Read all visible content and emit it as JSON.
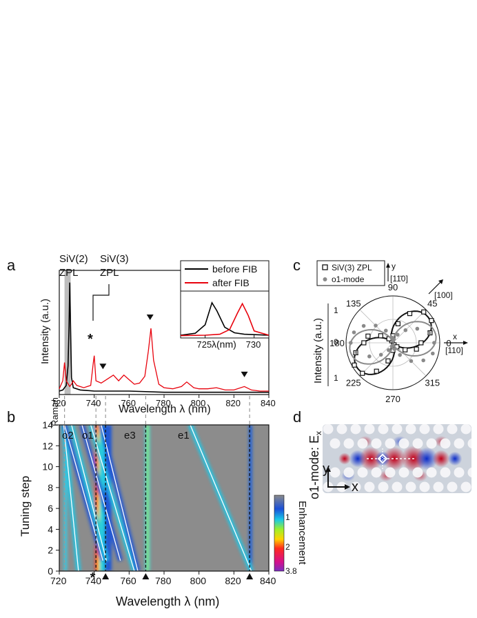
{
  "figure": {
    "panel_labels": [
      "a",
      "b",
      "c",
      "d"
    ]
  },
  "chart_data": [
    {
      "panel": "a",
      "type": "line",
      "xlabel": "Wavelength λ (nm)",
      "ylabel": "Intensity (a.u.)",
      "xlim": [
        720,
        840
      ],
      "xticks": [
        720,
        740,
        760,
        780,
        800,
        820,
        840
      ],
      "legend": [
        "before FIB",
        "after FIB"
      ],
      "legend_position": "top-right",
      "colors": {
        "before FIB": "#000000",
        "after FIB": "#e8000b"
      },
      "annotations": [
        "SiV(2)",
        "ZPL",
        "SiV(3)",
        "ZPL",
        "*",
        "Raman"
      ],
      "highlight_band": [
        723,
        726.5
      ],
      "markers_triangle": [
        745,
        772,
        826
      ],
      "series": [
        {
          "name": "before FIB",
          "x": [
            720,
            722,
            724,
            725,
            725.6,
            726,
            726.5,
            727,
            728,
            732,
            740,
            760,
            780,
            800,
            820,
            840
          ],
          "y": [
            0.03,
            0.04,
            0.08,
            0.25,
            0.6,
            0.98,
            0.55,
            0.15,
            0.06,
            0.04,
            0.03,
            0.03,
            0.02,
            0.02,
            0.02,
            0.02
          ]
        },
        {
          "name": "after FIB",
          "x": [
            720,
            722,
            723,
            724,
            726,
            727,
            728,
            730,
            734,
            738,
            739.5,
            740,
            741,
            744,
            748,
            751,
            754,
            757,
            760,
            763,
            766,
            769,
            771,
            772.5,
            774,
            777,
            780,
            785,
            790,
            793,
            797,
            800,
            805,
            810,
            815,
            820,
            826,
            830,
            835,
            840
          ],
          "y": [
            0.05,
            0.12,
            0.28,
            0.12,
            0.07,
            0.09,
            0.12,
            0.08,
            0.06,
            0.08,
            0.28,
            0.34,
            0.12,
            0.1,
            0.14,
            0.17,
            0.12,
            0.17,
            0.13,
            0.09,
            0.1,
            0.16,
            0.38,
            0.58,
            0.3,
            0.09,
            0.06,
            0.05,
            0.07,
            0.11,
            0.06,
            0.05,
            0.05,
            0.06,
            0.04,
            0.04,
            0.07,
            0.04,
            0.03,
            0.03
          ]
        }
      ],
      "inset": {
        "xlabel": "λ(nm)",
        "xlim": [
          722.5,
          731.5
        ],
        "xticks": [
          725,
          730
        ],
        "series": [
          {
            "name": "before FIB",
            "x": [
              722.5,
              724,
              725,
              725.7,
              726.2,
              727,
              728,
              729,
              731.5
            ],
            "y": [
              0.03,
              0.07,
              0.25,
              0.72,
              0.55,
              0.2,
              0.08,
              0.05,
              0.03
            ]
          },
          {
            "name": "after FIB",
            "x": [
              722.5,
              725,
              726.5,
              727.5,
              728.3,
              728.8,
              729.4,
              730,
              731.5
            ],
            "y": [
              0.02,
              0.03,
              0.05,
              0.15,
              0.5,
              0.7,
              0.45,
              0.12,
              0.03
            ]
          }
        ]
      }
    },
    {
      "panel": "b",
      "type": "heatmap",
      "xlabel": "Wavelength λ (nm)",
      "ylabel": "Tuning step",
      "xlim": [
        720,
        840
      ],
      "ylim": [
        0,
        14
      ],
      "xticks": [
        720,
        740,
        760,
        780,
        800,
        820,
        840
      ],
      "yticks": [
        0,
        2,
        4,
        6,
        8,
        10,
        12,
        14
      ],
      "colorbar_label": "Enhancement",
      "colorbar_ticks": [
        "1",
        "2",
        "3.8"
      ],
      "mode_labels": [
        "o2",
        "o1",
        "e3",
        "e1"
      ],
      "bottom_markers": [
        "*",
        "▲",
        "▲",
        "▲"
      ],
      "bottom_marker_x": [
        740,
        746.5,
        769.5,
        829
      ],
      "dashed_lines_x": [
        723,
        741,
        746.5,
        769.5,
        829
      ],
      "mode_tracks": [
        {
          "x": [
            722.5,
            731
          ],
          "y": [
            14,
            0
          ]
        },
        {
          "x": [
            723,
            745
          ],
          "y": [
            14,
            1
          ]
        },
        {
          "x": [
            727,
            747
          ],
          "y": [
            14,
            1
          ]
        },
        {
          "x": [
            733,
            755
          ],
          "y": [
            14,
            1
          ]
        },
        {
          "x": [
            738,
            763
          ],
          "y": [
            14,
            0
          ]
        },
        {
          "x": [
            744,
            765
          ],
          "y": [
            14,
            0
          ]
        },
        {
          "x": [
            795,
            830
          ],
          "y": [
            14,
            0
          ]
        }
      ]
    },
    {
      "panel": "c",
      "type": "scatter",
      "subtype": "polar",
      "ylabel": "Intensity (a.u.)",
      "legend": [
        "SiV(3) ZPL",
        "o1-mode"
      ],
      "angle_labels": [
        "0",
        "45",
        "90",
        "135",
        "180",
        "225",
        "270",
        "315"
      ],
      "radial_labels": [
        "1",
        "0",
        "1"
      ],
      "axis_labels": [
        "x",
        "[110]",
        "y",
        "[11̄0]",
        "[100]"
      ],
      "series": [
        {
          "name": "SiV(3) ZPL",
          "marker": "open-square",
          "peak_angle_deg": 35,
          "amplitude": 0.9,
          "angles_deg": [
            0,
            15,
            30,
            45,
            60,
            75,
            90,
            105,
            120,
            135,
            150,
            165,
            180,
            195,
            210,
            225,
            240,
            255,
            270,
            285,
            300,
            315,
            330,
            345
          ],
          "values": [
            0.6,
            0.82,
            0.95,
            0.93,
            0.72,
            0.42,
            0.15,
            0.05,
            0.05,
            0.12,
            0.3,
            0.55,
            0.62,
            0.82,
            0.95,
            0.92,
            0.7,
            0.4,
            0.16,
            0.05,
            0.05,
            0.12,
            0.3,
            0.52
          ]
        },
        {
          "name": "o1-mode",
          "marker": "filled-circle",
          "peak_angle_deg": 10,
          "amplitude": 0.9,
          "angles_deg": [
            0,
            15,
            30,
            45,
            60,
            75,
            90,
            105,
            120,
            135,
            150,
            165,
            180,
            195,
            210,
            225,
            240,
            255,
            270,
            285,
            300,
            315,
            330,
            345
          ],
          "values": [
            0.88,
            0.8,
            0.6,
            0.38,
            0.2,
            0.08,
            0.04,
            0.12,
            0.3,
            0.52,
            0.72,
            0.86,
            0.9,
            0.8,
            0.58,
            0.36,
            0.18,
            0.08,
            0.05,
            0.14,
            0.3,
            0.55,
            0.75,
            0.88
          ]
        }
      ]
    }
  ],
  "panel_d": {
    "label": "o1-mode: E",
    "label_sub": "x",
    "axis_x": "x",
    "axis_y": "y"
  }
}
